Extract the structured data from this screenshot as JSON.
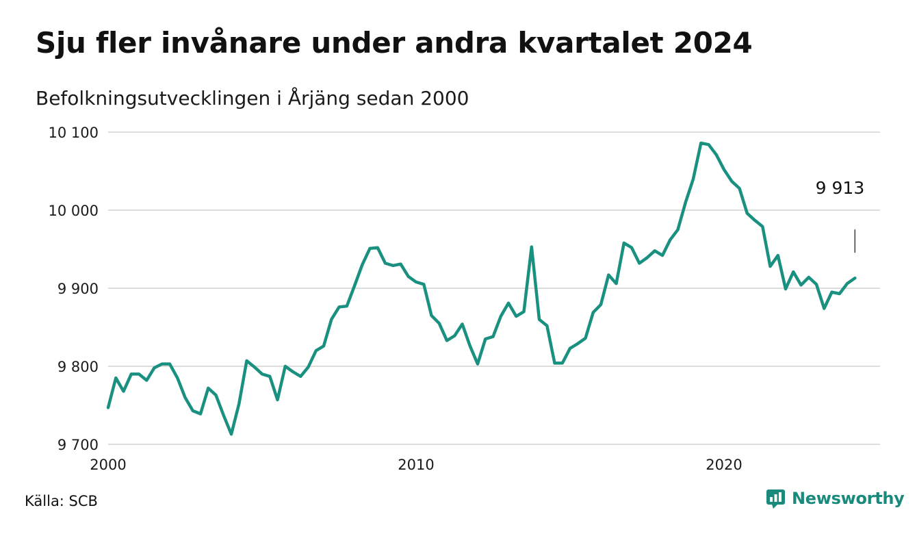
{
  "header": {
    "title": "Sju fler invånare under andra kvartalet 2024",
    "subtitle": "Befolkningsutvecklingen i Årjäng sedan 2000"
  },
  "footer": {
    "source": "Källa: SCB",
    "brand": "Newsworthy"
  },
  "colors": {
    "line": "#1a9080",
    "grid": "#dcdcdc",
    "brand": "#1a8a7c"
  },
  "chart_data": {
    "type": "line",
    "title": "Sju fler invånare under andra kvartalet 2024",
    "subtitle": "Befolkningsutvecklingen i Årjäng sedan 2000",
    "xlabel": "",
    "ylabel": "",
    "xlim": [
      2000,
      2024.75
    ],
    "ylim": [
      9700,
      10100
    ],
    "x_ticks": [
      2000,
      2010,
      2020
    ],
    "x_tick_labels": [
      "2000",
      "2010",
      "2020"
    ],
    "y_ticks": [
      9700,
      9800,
      9900,
      10000,
      10100
    ],
    "y_tick_labels": [
      "9 700",
      "9 800",
      "9 900",
      "10 000",
      "10 100"
    ],
    "grid": true,
    "x_start": "2000-Q1",
    "x_step": "quarter",
    "series": [
      {
        "values": [
          9747,
          9785,
          9768,
          9790,
          9790,
          9782,
          9798,
          9803,
          9803,
          9785,
          9760,
          9743,
          9739,
          9772,
          9763,
          9737,
          9713,
          9752,
          9807,
          9799,
          9790,
          9787,
          9757,
          9800,
          9793,
          9787,
          9799,
          9820,
          9826,
          9860,
          9876,
          9877,
          9903,
          9930,
          9951,
          9952,
          9932,
          9929,
          9931,
          9915,
          9908,
          9905,
          9865,
          9855,
          9833,
          9839,
          9854,
          9826,
          9803,
          9835,
          9838,
          9864,
          9881,
          9864,
          9870,
          9953,
          9860,
          9852,
          9804,
          9804,
          9823,
          9829,
          9836,
          9869,
          9879,
          9917,
          9906,
          9958,
          9952,
          9932,
          9939,
          9948,
          9942,
          9962,
          9975,
          10010,
          10040,
          10086,
          10084,
          10071,
          10052,
          10037,
          10028,
          9996,
          9987,
          9979,
          9928,
          9942,
          9899,
          9921,
          9904,
          9914,
          9905,
          9874,
          9895,
          9893,
          9906,
          9913
        ]
      }
    ],
    "annotations": [
      {
        "label": "9 913",
        "x": 2024.25,
        "y": 9913
      }
    ]
  }
}
